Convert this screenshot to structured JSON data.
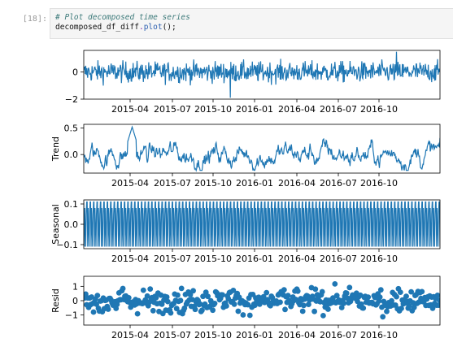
{
  "cell": {
    "prompt": "[18]:",
    "comment": "# Plot decomposed time series",
    "code_obj": "decomposed_df_diff",
    "code_dot": ".",
    "code_fn": "plot",
    "code_tail": "();"
  },
  "colors": {
    "series": "#1f77b4",
    "axis": "#000000"
  },
  "chart_data": [
    {
      "type": "line",
      "title": "",
      "ylabel": "",
      "ylim": [
        -2.0,
        1.6
      ],
      "yticks": [
        -2,
        0
      ],
      "yticklabels": [
        "−2",
        "0"
      ],
      "x_range": [
        "2015-01-01",
        "2016-12-31"
      ],
      "xticklabels": [
        "2015-04",
        "2015-07",
        "2015-10",
        "2016-01",
        "2016-04",
        "2016-07",
        "2016-10"
      ],
      "series": [
        {
          "values_description_note": "",
          "pattern": "noise",
          "amplitude": 0.7,
          "min": -1.9,
          "max": 1.5
        }
      ]
    },
    {
      "type": "line",
      "title": "",
      "ylabel": "Trend",
      "ylim": [
        -0.35,
        0.57
      ],
      "yticks": [
        0.5,
        0.0
      ],
      "yticklabels": [
        "0.5",
        "0.0"
      ],
      "x_range": [
        "2015-01-01",
        "2016-12-31"
      ],
      "xticklabels": [
        "2015-04",
        "2015-07",
        "2015-10",
        "2016-01",
        "2016-04",
        "2016-07",
        "2016-10"
      ],
      "series": [
        {
          "pattern": "trend",
          "amplitude": 0.15,
          "min": -0.3,
          "max": 0.52
        }
      ]
    },
    {
      "type": "line",
      "title": "",
      "ylabel": "Seasonal",
      "ylim": [
        -0.12,
        0.12
      ],
      "yticks": [
        0.1,
        0.0,
        -0.1
      ],
      "yticklabels": [
        "0.1",
        "0.0",
        "−0.1"
      ],
      "x_range": [
        "2015-01-01",
        "2016-12-31"
      ],
      "xticklabels": [
        "2015-04",
        "2015-07",
        "2015-10",
        "2016-01",
        "2016-04",
        "2016-07",
        "2016-10"
      ],
      "series": [
        {
          "pattern": "seasonal",
          "amplitude": 0.11,
          "period_days": 7
        }
      ]
    },
    {
      "type": "scatter",
      "title": "",
      "ylabel": "Resid",
      "ylim": [
        -1.7,
        1.7
      ],
      "yticks": [
        1,
        0,
        -1
      ],
      "yticklabels": [
        "1",
        "0",
        "−1"
      ],
      "x_range": [
        "2015-01-01",
        "2016-12-31"
      ],
      "xticklabels": [
        "2015-04",
        "2015-07",
        "2015-10",
        "2016-01",
        "2016-04",
        "2016-07",
        "2016-10"
      ],
      "series": [
        {
          "pattern": "resid",
          "amplitude": 0.6,
          "min": -1.6,
          "max": 1.6
        }
      ]
    }
  ]
}
